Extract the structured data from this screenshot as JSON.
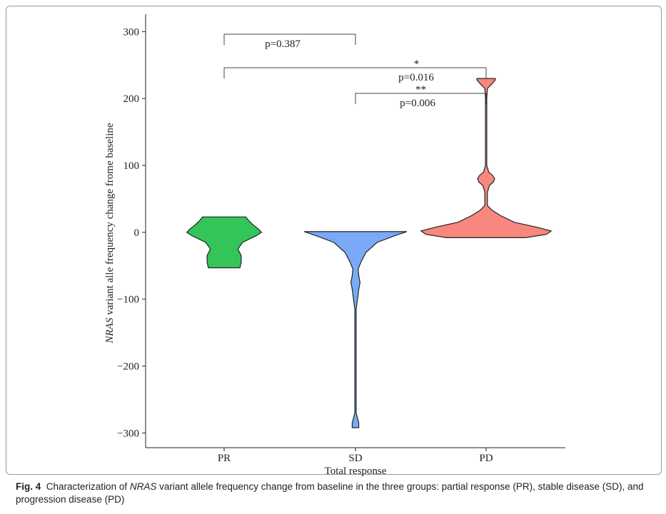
{
  "chart_data": {
    "type": "violin",
    "ylabel": {
      "italic": "NRAS",
      "rest": " variant alle frequency change frome baseline"
    },
    "xlabel": "Total response",
    "ylim": [
      -322,
      326
    ],
    "yticks": [
      300,
      200,
      100,
      0,
      {
        "value": -100,
        "label": "−100"
      },
      {
        "value": -200,
        "label": "−200"
      },
      {
        "value": -300,
        "label": "−300"
      }
    ],
    "series": [
      {
        "name": "PR",
        "color": "#33c45a",
        "y": [
          -53,
          -45,
          -35,
          -25,
          -15,
          -5,
          0,
          5,
          12,
          18,
          23
        ],
        "density": [
          0.24,
          0.26,
          0.26,
          0.21,
          0.28,
          0.49,
          0.57,
          0.52,
          0.43,
          0.37,
          0.33
        ]
      },
      {
        "name": "SD",
        "color": "#7aaaf7",
        "y": [
          -292,
          -285,
          -270,
          -200,
          -115,
          -100,
          -85,
          -75,
          -65,
          -55,
          -45,
          -30,
          -15,
          -5,
          1
        ],
        "density": [
          0.05,
          0.05,
          0.01,
          0.01,
          0.01,
          0.03,
          0.05,
          0.07,
          0.05,
          0.04,
          0.08,
          0.16,
          0.33,
          0.6,
          0.78
        ]
      },
      {
        "name": "PD",
        "color": "#f8877d",
        "y": [
          -8,
          -3,
          2,
          8,
          15,
          25,
          33,
          40,
          60,
          70,
          75,
          80,
          85,
          90,
          100,
          200,
          215,
          222,
          228,
          230
        ],
        "density": [
          0.6,
          0.92,
          0.99,
          0.76,
          0.43,
          0.22,
          0.09,
          0.02,
          0.02,
          0.05,
          0.11,
          0.13,
          0.1,
          0.04,
          0.01,
          0.01,
          0.02,
          0.09,
          0.14,
          0.14
        ]
      }
    ],
    "comparisons": [
      {
        "groups": [
          "PR",
          "SD"
        ],
        "label": "p=0.387"
      },
      {
        "groups": [
          "PR",
          "PD"
        ],
        "stars": "*",
        "label": "p=0.016"
      },
      {
        "groups": [
          "SD",
          "PD"
        ],
        "stars": "**",
        "label": "p=0.006"
      }
    ]
  },
  "caption": {
    "fig": "Fig. 4",
    "pre": "Characterization of ",
    "italic": "NRAS",
    "post": " variant allele frequency change from baseline in the three groups: partial response (PR), stable disease (SD), and progression disease (PD)"
  }
}
